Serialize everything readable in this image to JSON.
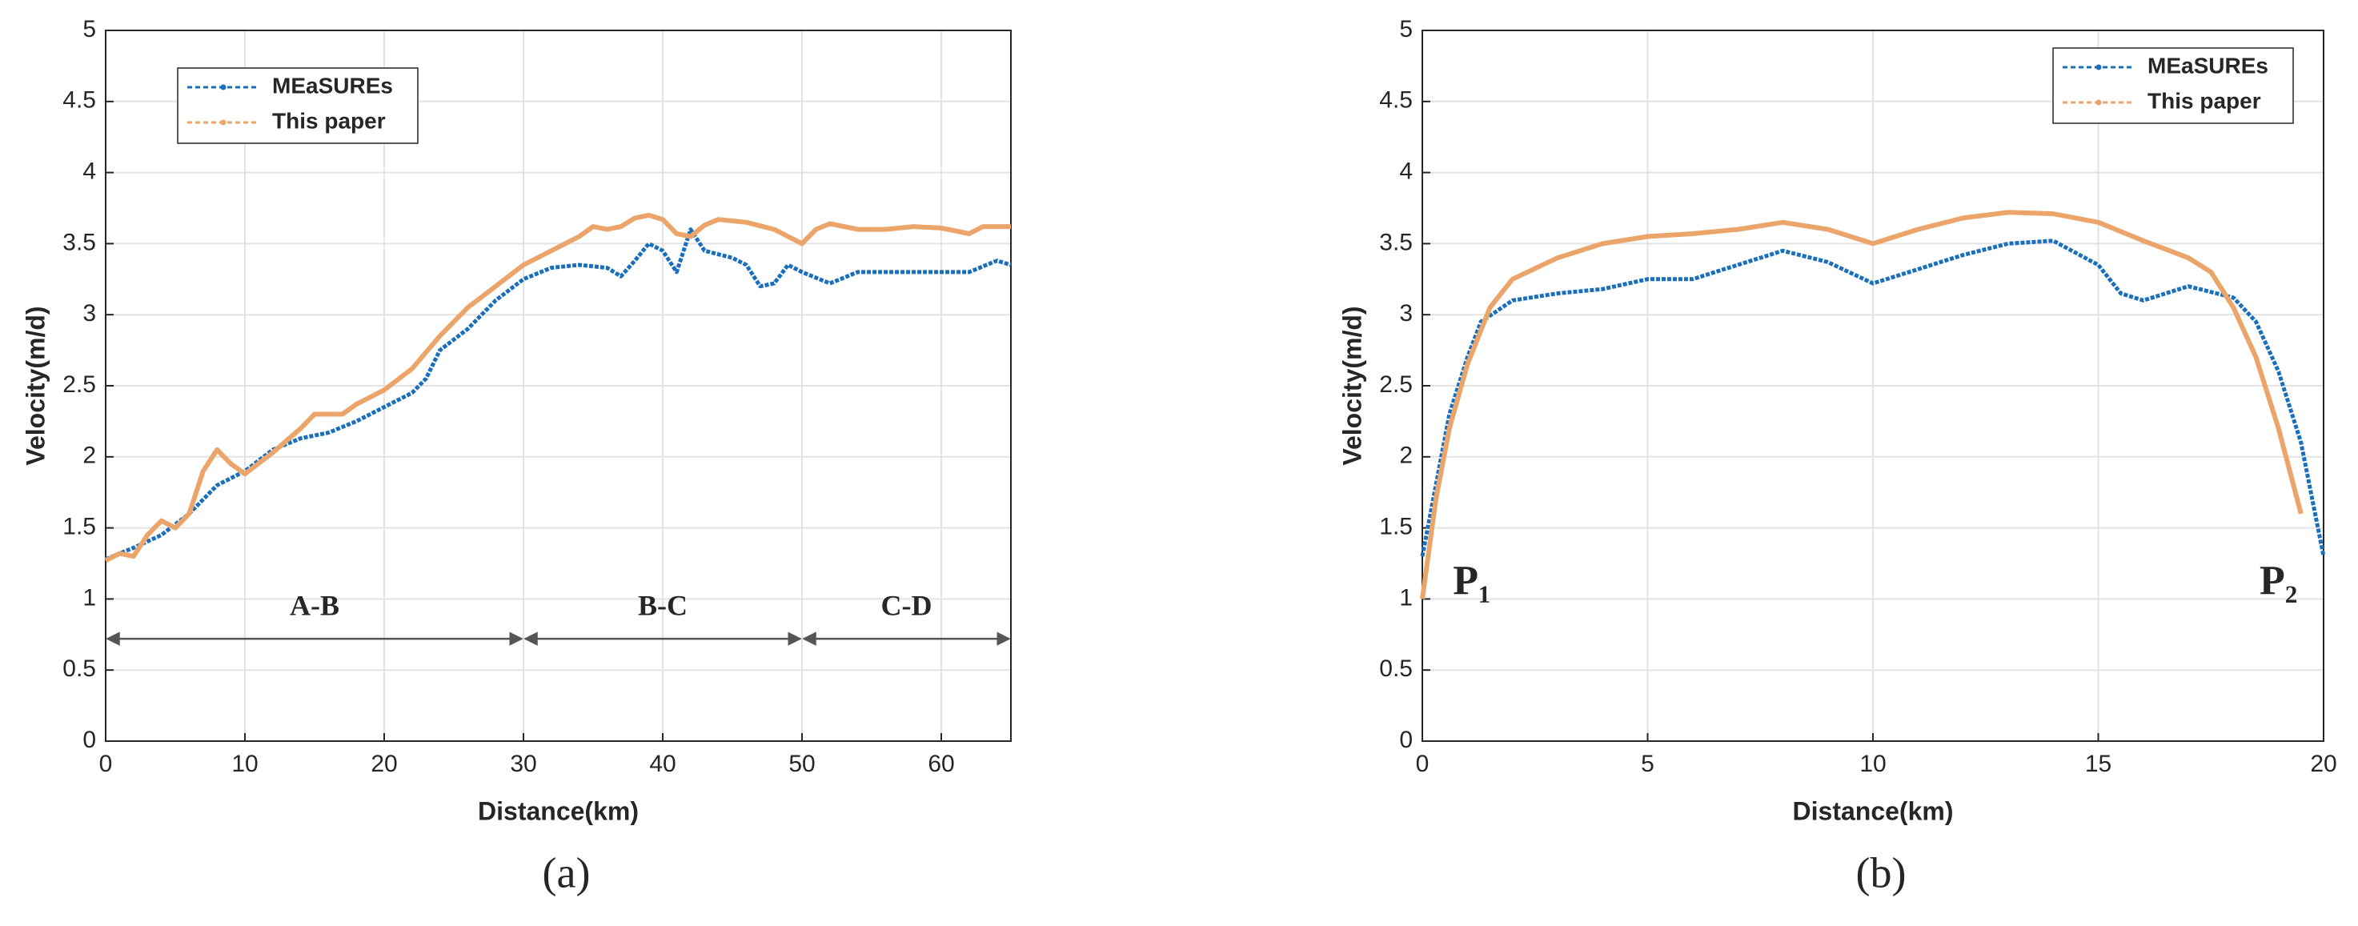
{
  "chart_data": [
    {
      "type": "line",
      "caption": "(a)",
      "xlabel": "Distance(km)",
      "ylabel": "Velocity(m/d)",
      "xlim": [
        0,
        65
      ],
      "ylim": [
        0,
        5
      ],
      "xticks": [
        0,
        10,
        20,
        30,
        40,
        50,
        60
      ],
      "yticks": [
        0,
        0.5,
        1,
        1.5,
        2,
        2.5,
        3,
        3.5,
        4,
        4.5,
        5
      ],
      "grid": true,
      "legend": "upper-left",
      "series": [
        {
          "name": "MEaSUREs",
          "color": "#1a6fbd",
          "x": [
            0,
            2,
            4,
            6,
            8,
            10,
            12,
            14,
            16,
            18,
            20,
            22,
            23,
            24,
            26,
            28,
            30,
            32,
            34,
            36,
            37,
            38,
            39,
            40,
            41,
            42,
            43,
            45,
            46,
            47,
            48,
            49,
            50,
            52,
            54,
            56,
            58,
            60,
            62,
            64,
            65
          ],
          "values": [
            1.28,
            1.36,
            1.45,
            1.6,
            1.8,
            1.9,
            2.05,
            2.13,
            2.17,
            2.25,
            2.35,
            2.45,
            2.55,
            2.75,
            2.9,
            3.1,
            3.25,
            3.33,
            3.35,
            3.33,
            3.27,
            3.38,
            3.5,
            3.45,
            3.3,
            3.6,
            3.45,
            3.4,
            3.35,
            3.2,
            3.22,
            3.35,
            3.3,
            3.22,
            3.3,
            3.3,
            3.3,
            3.3,
            3.3,
            3.38,
            3.35
          ]
        },
        {
          "name": "This paper",
          "color": "#eba46a",
          "x": [
            0,
            1,
            2,
            3,
            4,
            5,
            6,
            7,
            8,
            9,
            10,
            12,
            14,
            15,
            16,
            17,
            18,
            20,
            22,
            24,
            26,
            28,
            30,
            32,
            34,
            35,
            36,
            37,
            38,
            39,
            40,
            41,
            42,
            43,
            44,
            46,
            48,
            49,
            50,
            51,
            52,
            54,
            56,
            58,
            60,
            62,
            63,
            65
          ],
          "values": [
            1.27,
            1.32,
            1.3,
            1.45,
            1.55,
            1.5,
            1.6,
            1.9,
            2.05,
            1.95,
            1.88,
            2.03,
            2.2,
            2.3,
            2.3,
            2.3,
            2.37,
            2.47,
            2.62,
            2.85,
            3.05,
            3.2,
            3.35,
            3.45,
            3.55,
            3.62,
            3.6,
            3.62,
            3.68,
            3.7,
            3.67,
            3.57,
            3.55,
            3.63,
            3.67,
            3.65,
            3.6,
            3.55,
            3.5,
            3.6,
            3.64,
            3.6,
            3.6,
            3.62,
            3.61,
            3.57,
            3.62,
            3.62
          ]
        }
      ],
      "annotations": [
        {
          "text": "A-B",
          "x": [
            0,
            30
          ],
          "y": 0.72
        },
        {
          "text": "B-C",
          "x": [
            30,
            50
          ],
          "y": 0.72
        },
        {
          "text": "C-D",
          "x": [
            50,
            65
          ],
          "y": 0.72
        }
      ]
    },
    {
      "type": "line",
      "caption": "(b)",
      "xlabel": "Distance(km)",
      "ylabel": "Velocity(m/d)",
      "xlim": [
        0,
        20
      ],
      "ylim": [
        0,
        5
      ],
      "xticks": [
        0,
        5,
        10,
        15,
        20
      ],
      "yticks": [
        0,
        0.5,
        1,
        1.5,
        2,
        2.5,
        3,
        3.5,
        4,
        4.5,
        5
      ],
      "grid": true,
      "legend": "upper-right",
      "series": [
        {
          "name": "MEaSUREs",
          "color": "#1a6fbd",
          "x": [
            0,
            0.3,
            0.6,
            1,
            1.3,
            2,
            3,
            4,
            5,
            6,
            7,
            8,
            9,
            10,
            11,
            12,
            13,
            14,
            15,
            15.5,
            16,
            17,
            18,
            18.5,
            19,
            19.5,
            20
          ],
          "values": [
            1.3,
            1.8,
            2.3,
            2.7,
            2.95,
            3.1,
            3.15,
            3.18,
            3.25,
            3.25,
            3.35,
            3.45,
            3.37,
            3.22,
            3.32,
            3.42,
            3.5,
            3.52,
            3.35,
            3.15,
            3.1,
            3.2,
            3.12,
            2.95,
            2.6,
            2.1,
            1.3
          ]
        },
        {
          "name": "This paper",
          "color": "#eba46a",
          "x": [
            0,
            0.3,
            0.6,
            1,
            1.5,
            2,
            3,
            4,
            5,
            6,
            7,
            8,
            9,
            10,
            11,
            12,
            13,
            14,
            15,
            16,
            17,
            17.5,
            18,
            18.5,
            19,
            19.5
          ],
          "values": [
            1.0,
            1.7,
            2.2,
            2.65,
            3.05,
            3.25,
            3.4,
            3.5,
            3.55,
            3.57,
            3.6,
            3.65,
            3.6,
            3.5,
            3.6,
            3.68,
            3.72,
            3.71,
            3.65,
            3.52,
            3.4,
            3.3,
            3.05,
            2.7,
            2.2,
            1.6
          ]
        }
      ],
      "annotations": [
        {
          "text": "P₁",
          "x": 1.1,
          "y": 1.1
        },
        {
          "text": "P₂",
          "x": 19.0,
          "y": 1.1
        }
      ]
    }
  ]
}
